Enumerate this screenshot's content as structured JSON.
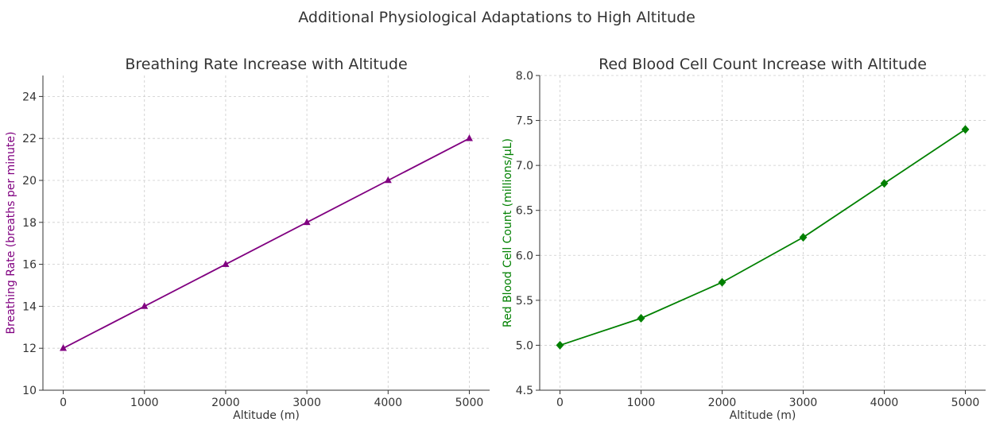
{
  "figure": {
    "title": "Additional Physiological Adaptations to High Altitude"
  },
  "chart_data": [
    {
      "type": "line",
      "title": "Breathing Rate Increase with Altitude",
      "xlabel": "Altitude (m)",
      "ylabel": "Breathing Rate (breaths per minute)",
      "x": [
        0,
        1000,
        2000,
        3000,
        4000,
        5000
      ],
      "series": [
        {
          "values": [
            12,
            14,
            16,
            18,
            20,
            22
          ],
          "color": "#800080",
          "marker": "triangle"
        }
      ],
      "xticks": [
        "0",
        "1000",
        "2000",
        "3000",
        "4000",
        "5000"
      ],
      "yticks": [
        "10",
        "12",
        "14",
        "16",
        "18",
        "20",
        "22",
        "24"
      ],
      "xlim": [
        -250,
        5250
      ],
      "ylim": [
        10,
        25
      ],
      "ylabel_color": "#800080",
      "grid": true
    },
    {
      "type": "line",
      "title": "Red Blood Cell Count Increase with Altitude",
      "xlabel": "Altitude (m)",
      "ylabel": "Red Blood Cell Count (millions/µL)",
      "x": [
        0,
        1000,
        2000,
        3000,
        4000,
        5000
      ],
      "series": [
        {
          "values": [
            5.0,
            5.3,
            5.7,
            6.2,
            6.8,
            7.4
          ],
          "color": "#008000",
          "marker": "diamond"
        }
      ],
      "xticks": [
        "0",
        "1000",
        "2000",
        "3000",
        "4000",
        "5000"
      ],
      "yticks": [
        "4.5",
        "5.0",
        "5.5",
        "6.0",
        "6.5",
        "7.0",
        "7.5",
        "8.0"
      ],
      "xlim": [
        -250,
        5250
      ],
      "ylim": [
        4.5,
        8.0
      ],
      "ylabel_color": "#008000",
      "grid": true
    }
  ]
}
